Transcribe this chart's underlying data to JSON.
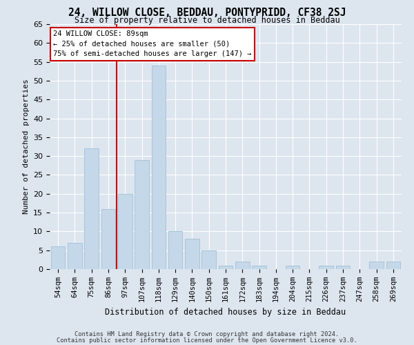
{
  "title": "24, WILLOW CLOSE, BEDDAU, PONTYPRIDD, CF38 2SJ",
  "subtitle": "Size of property relative to detached houses in Beddau",
  "xlabel": "Distribution of detached houses by size in Beddau",
  "ylabel": "Number of detached properties",
  "categories": [
    "54sqm",
    "64sqm",
    "75sqm",
    "86sqm",
    "97sqm",
    "107sqm",
    "118sqm",
    "129sqm",
    "140sqm",
    "150sqm",
    "161sqm",
    "172sqm",
    "183sqm",
    "194sqm",
    "204sqm",
    "215sqm",
    "226sqm",
    "237sqm",
    "247sqm",
    "258sqm",
    "269sqm"
  ],
  "values": [
    6,
    7,
    32,
    16,
    20,
    29,
    54,
    10,
    8,
    5,
    1,
    2,
    1,
    0,
    1,
    0,
    1,
    1,
    0,
    2,
    2
  ],
  "bar_color": "#c5d8ea",
  "bar_edgecolor": "#a8c4d8",
  "vline_x": 3.5,
  "vline_color": "#cc0000",
  "annotation_title": "24 WILLOW CLOSE: 89sqm",
  "annotation_line1": "← 25% of detached houses are smaller (50)",
  "annotation_line2": "75% of semi-detached houses are larger (147) →",
  "annotation_box_color": "#cc0000",
  "ylim": [
    0,
    65
  ],
  "yticks": [
    0,
    5,
    10,
    15,
    20,
    25,
    30,
    35,
    40,
    45,
    50,
    55,
    60,
    65
  ],
  "background_color": "#dde6ef",
  "plot_background_color": "#dde6ef",
  "footer1": "Contains HM Land Registry data © Crown copyright and database right 2024.",
  "footer2": "Contains public sector information licensed under the Open Government Licence v3.0."
}
